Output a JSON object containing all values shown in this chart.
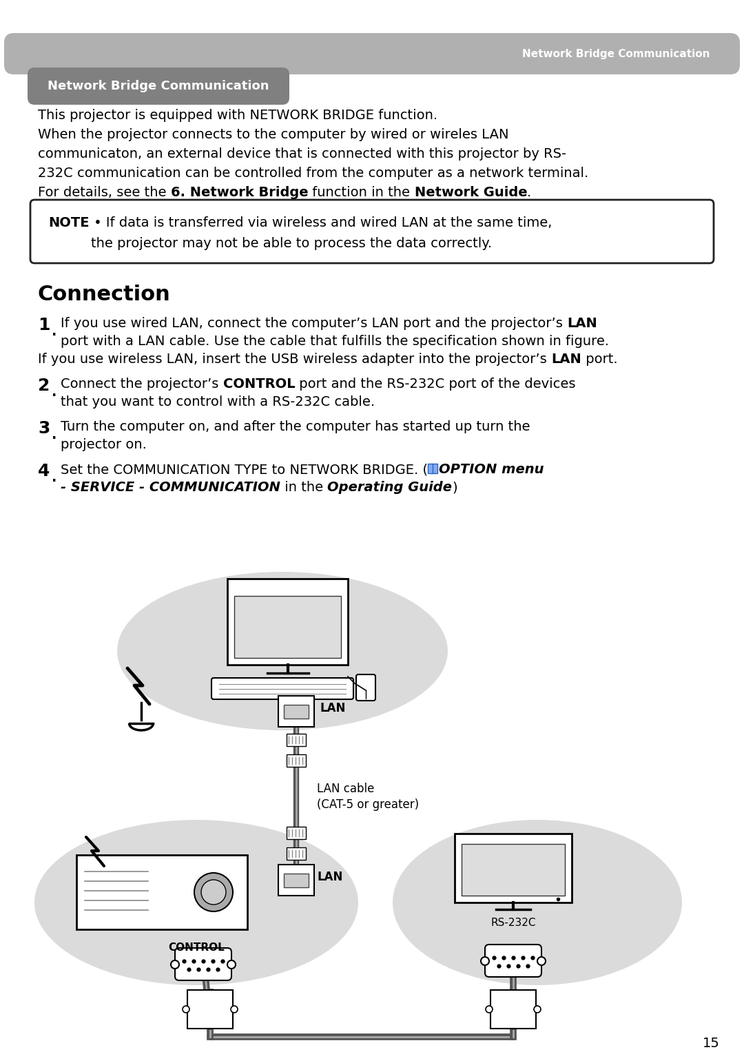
{
  "page_bg": "#ffffff",
  "header_bar_color": "#b0b0b0",
  "header_text": "Network Bridge Communication",
  "header_text_color": "#ffffff",
  "section_badge_color": "#808080",
  "section_badge_text": "Network Bridge Communication",
  "section_badge_text_color": "#ffffff",
  "body_text_color": "#000000",
  "note_border_color": "#222222",
  "note_bg": "#ffffff",
  "connection_title": "Connection",
  "page_number": "15",
  "diagram_ellipse_color": "#cccccc",
  "para1_line1": "This projector is equipped with NETWORK BRIDGE function.",
  "para1_line2": "When the projector connects to the computer by wired or wireles LAN",
  "para1_line3": "communicaton, an external device that is connected with this projector by RS-",
  "para1_line4": "232C communication can be controlled from the computer as a network terminal.",
  "para1_line5_plain": "For details, see the ",
  "para1_line5_bold1": "6. Network Bridge",
  "para1_line5_mid": " function in the ",
  "para1_line5_bold2": "Network Guide",
  "para1_line5_end": ".",
  "note_bold": "NOTE",
  "note_dot": " • ",
  "note_text1": "If data is transferred via wireless and wired LAN at the same time,",
  "note_text2": "the projector may not be able to process the data correctly.",
  "step1_text1_pre": "If you use wired LAN, connect the computer’s LAN port and the projector’s ",
  "step1_text1_bold": "LAN",
  "step1_text2": "port with a LAN cable. Use the cable that fulfills the specification shown in figure.",
  "step1_text3_pre": "If you use wireless LAN, insert the USB wireless adapter into the projector’s ",
  "step1_text3_bold": "LAN",
  "step1_text3_end": " port.",
  "step2_text1_pre": "Connect the projector’s ",
  "step2_text1_bold": "CONTROL",
  "step2_text1_end": " port and the RS-232C port of the devices",
  "step2_text2": "that you want to control with a RS-232C cable.",
  "step3_text1": "Turn the computer on, and after the computer has started up turn the",
  "step3_text2": "projector on.",
  "step4_text1_pre": "Set the COMMUNICATION TYPE to NETWORK BRIDGE. (",
  "step4_text1_bold_italic": "OPTION menu",
  "step4_text2_bold_italic": "- SERVICE - COMMUNICATION",
  "step4_text2_mid": " in the ",
  "step4_text2_bold_italic2": "Operating Guide",
  "step4_text2_end": ")"
}
